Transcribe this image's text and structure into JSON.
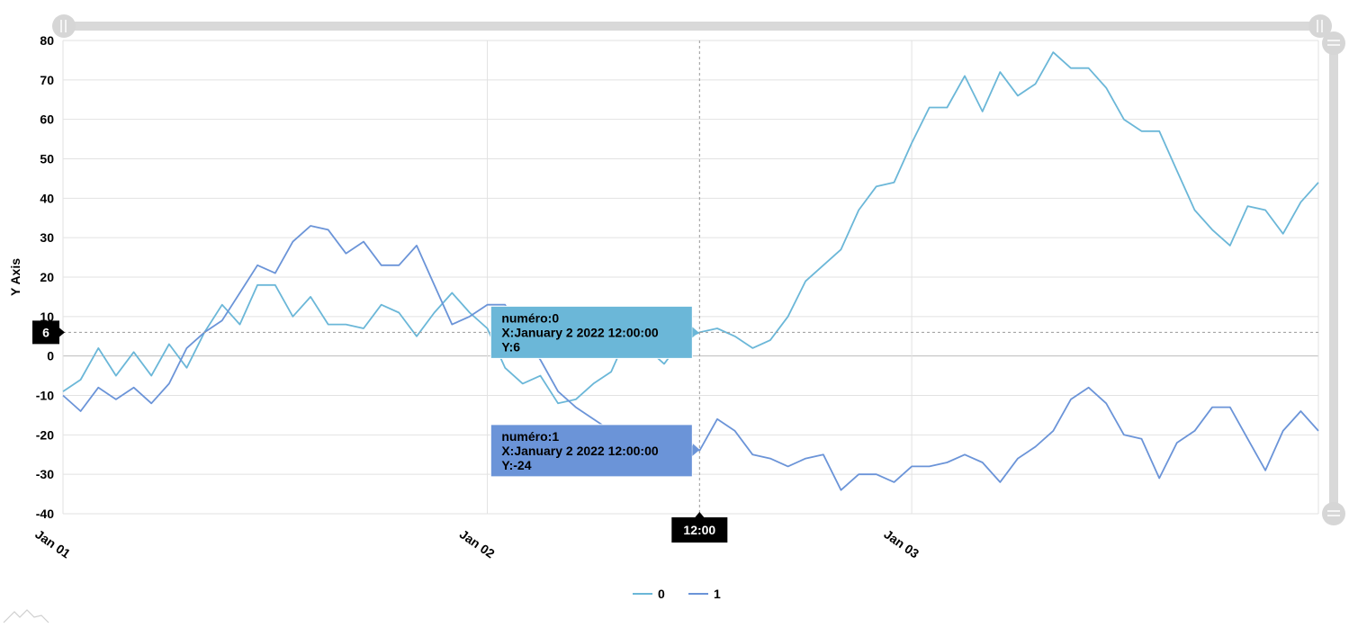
{
  "chart_data": {
    "type": "line",
    "title": "",
    "xlabel": "",
    "ylabel": "Y Axis",
    "ylim": [
      -40,
      80
    ],
    "yticks": [
      80,
      70,
      60,
      50,
      40,
      30,
      20,
      10,
      0,
      -10,
      -20,
      -30,
      -40
    ],
    "x_start": "2022-01-01 00:00",
    "x_end": "2022-01-03 23:00",
    "x_step_hours": 1,
    "xtick_labels": [
      "Jan 01",
      "Jan 02",
      "Jan 03"
    ],
    "xtick_dates": [
      "2022-01-01 00:00",
      "2022-01-02 00:00",
      "2022-01-03 00:00"
    ],
    "grid": true,
    "legend_position": "bottom-center",
    "series": [
      {
        "name": "0",
        "color": "#6bb7d8",
        "values": [
          -9,
          -6,
          2,
          -5,
          1,
          -5,
          3,
          -3,
          6,
          13,
          8,
          18,
          18,
          10,
          15,
          8,
          8,
          7,
          13,
          11,
          5,
          11,
          16,
          11,
          7,
          -3,
          -7,
          -5,
          -12,
          -11,
          -7,
          -4,
          6,
          2,
          -2,
          4,
          6,
          7,
          5,
          2,
          4,
          10,
          19,
          23,
          27,
          37,
          43,
          44,
          54,
          63,
          63,
          71,
          62,
          72,
          66,
          69,
          77,
          73,
          73,
          68,
          60,
          57,
          57,
          47,
          37,
          32,
          28,
          38,
          37,
          31,
          39,
          44
        ]
      },
      {
        "name": "1",
        "color": "#6b94d8",
        "values": [
          -10,
          -14,
          -8,
          -11,
          -8,
          -12,
          -7,
          2,
          6,
          9,
          16,
          23,
          21,
          29,
          33,
          32,
          26,
          29,
          23,
          23,
          28,
          18,
          8,
          10,
          13,
          13,
          5,
          -1,
          -9,
          -13,
          -16,
          -19,
          -23,
          -22,
          -22,
          -20,
          -24,
          -16,
          -19,
          -25,
          -26,
          -28,
          -26,
          -25,
          -34,
          -30,
          -30,
          -32,
          -28,
          -28,
          -27,
          -25,
          -27,
          -32,
          -26,
          -23,
          -19,
          -11,
          -8,
          -12,
          -20,
          -21,
          -31,
          -22,
          -19,
          -13,
          -13,
          -21,
          -29,
          -19,
          -14,
          -19
        ]
      }
    ],
    "crosshair": {
      "x_label": "12:00",
      "y_label": "6"
    },
    "tooltips": [
      {
        "series": "0",
        "line1": "numéro:0",
        "line2": "X:January 2 2022 12:00:00",
        "line3": "Y:6",
        "color": "#6bb7d8"
      },
      {
        "series": "1",
        "line1": "numéro:1",
        "line2": "X:January 2 2022 12:00:00",
        "line3": "Y:-24",
        "color": "#6b94d8"
      }
    ]
  }
}
